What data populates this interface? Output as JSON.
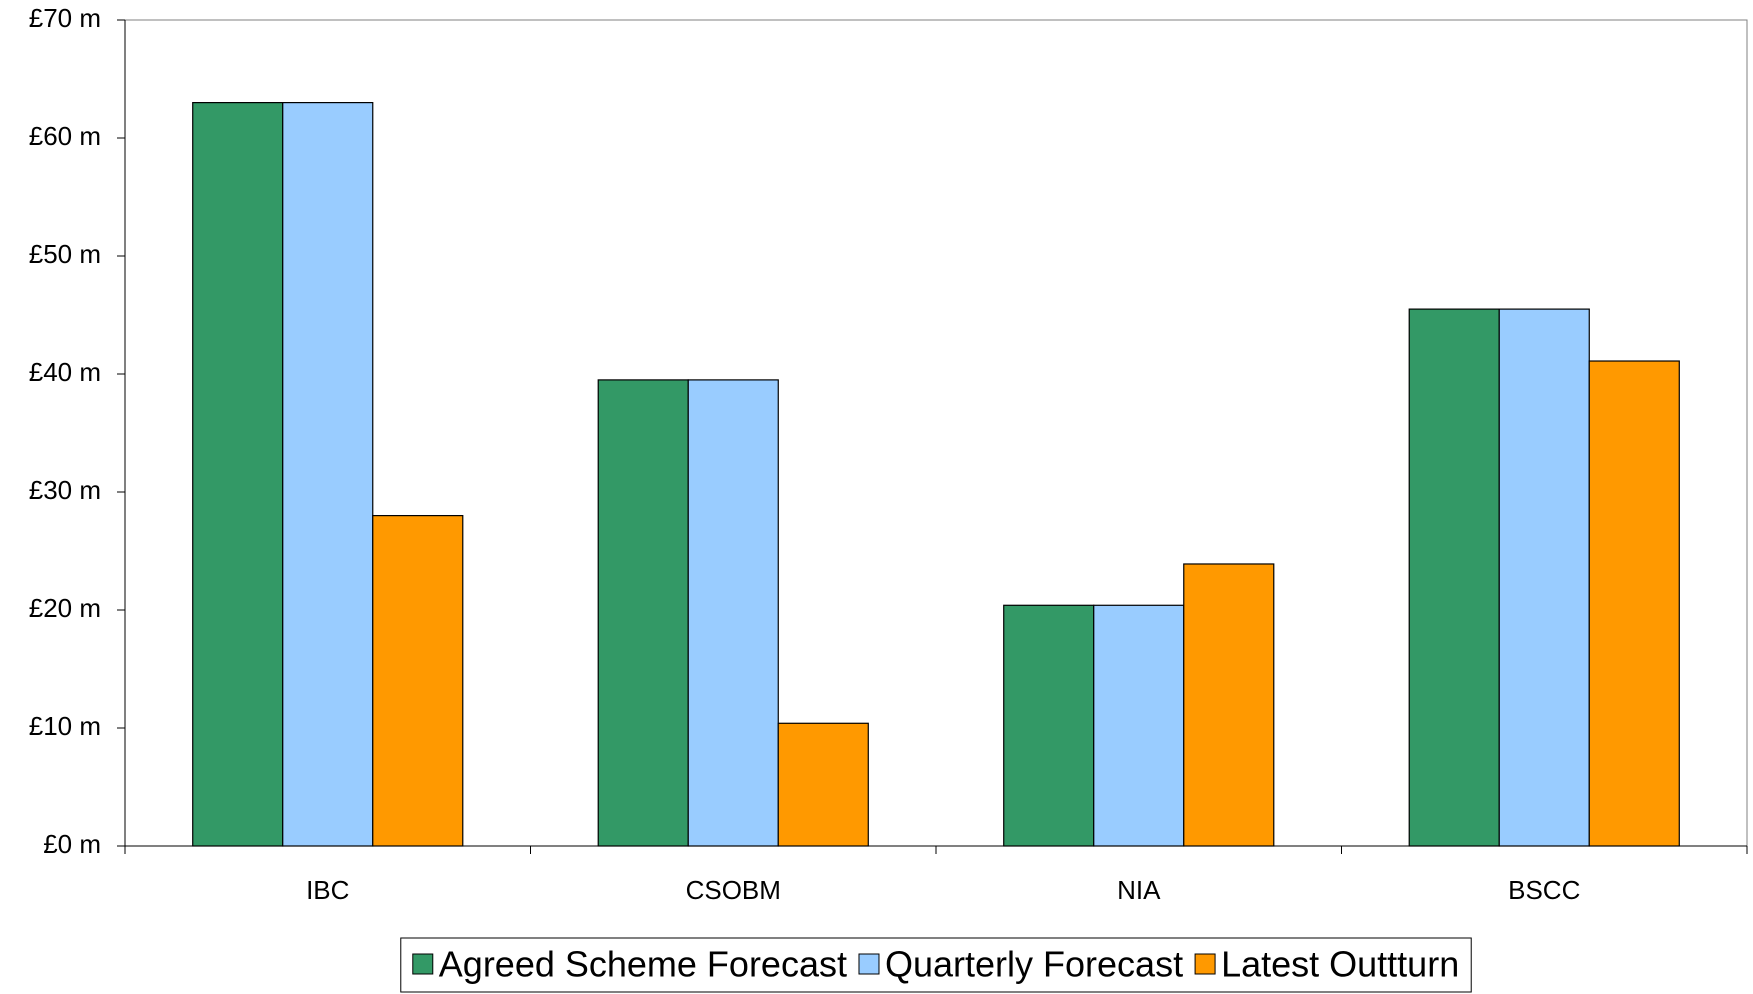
{
  "chart_data": {
    "type": "bar",
    "categories": [
      "IBC",
      "CSOBM",
      "NIA",
      "BSCC"
    ],
    "series": [
      {
        "name": "Agreed Scheme Forecast",
        "color": "#339966",
        "values": [
          63,
          39.5,
          20.4,
          45.5
        ]
      },
      {
        "name": "Quarterly Forecast",
        "color": "#99ccff",
        "values": [
          63,
          39.5,
          20.4,
          45.5
        ]
      },
      {
        "name": "Latest Outtturn",
        "color": "#ff9900",
        "values": [
          28,
          10.4,
          23.9,
          41.1
        ]
      }
    ],
    "ylim": [
      0,
      70
    ],
    "yticks": [
      {
        "value": 0,
        "label": "£0 m"
      },
      {
        "value": 10,
        "label": "£10 m"
      },
      {
        "value": 20,
        "label": "£20 m"
      },
      {
        "value": 30,
        "label": "£30 m"
      },
      {
        "value": 40,
        "label": "£40 m"
      },
      {
        "value": 50,
        "label": "£50 m"
      },
      {
        "value": 60,
        "label": "£60 m"
      },
      {
        "value": 70,
        "label": "£70 m"
      }
    ],
    "legend": "bottom"
  }
}
